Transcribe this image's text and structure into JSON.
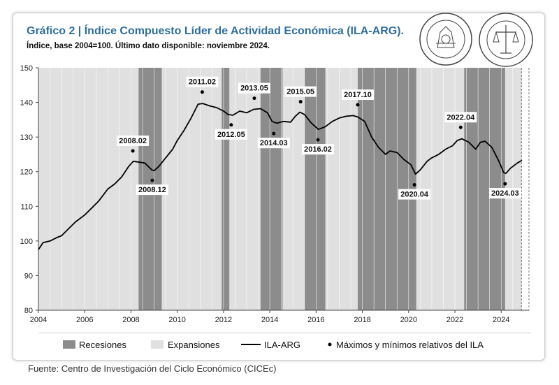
{
  "header": {
    "title": "Gráfico 2 | Índice Compuesto Líder de Actividad Económica (ILA-ARG).",
    "subtitle": "Índice, base 2004=100. Último dato disponible: noviembre 2024."
  },
  "logos": [
    {
      "name": "bolsa-comercio-santa-fe-seal",
      "text": "BOLSA DE COMERCIO DE SANTA FE"
    },
    {
      "name": "bolsa-comercio-rosario-seal",
      "text": "BOLSA DE COMERCIO DE ROSARIO"
    }
  ],
  "source": "Fuente: Centro de Investigación del Ciclo Económico (CICEc)",
  "colors": {
    "recession": "#8c8c8c",
    "expansion": "#e0e0e0",
    "line": "#000000",
    "title": "#2f6e9e"
  },
  "chart_data": {
    "type": "line",
    "title": "Índice Compuesto Líder de Actividad Económica (ILA-ARG)",
    "xlabel": "",
    "ylabel": "",
    "xlim": [
      2004.0,
      2025.2
    ],
    "ylim": [
      80,
      150
    ],
    "yticks": [
      80,
      90,
      100,
      110,
      120,
      130,
      140,
      150
    ],
    "xticks": [
      2004,
      2006,
      2008,
      2010,
      2012,
      2014,
      2016,
      2018,
      2020,
      2022,
      2024
    ],
    "grid": false,
    "legend": {
      "placement": "bottom",
      "entries": [
        "Recesiones",
        "Expansiones",
        "ILA-ARG",
        "Máximos y mínimos relativos del ILA"
      ]
    },
    "last_data": 2024.875,
    "recessions": [
      [
        2008.33,
        2009.33
      ],
      [
        2011.92,
        2012.25
      ],
      [
        2013.6,
        2014.55
      ],
      [
        2015.5,
        2016.4
      ],
      [
        2017.8,
        2020.33
      ],
      [
        2022.4,
        2024.17
      ]
    ],
    "series": [
      {
        "name": "ILA-ARG",
        "points": [
          [
            2004.0,
            97.5
          ],
          [
            2004.2,
            99.5
          ],
          [
            2004.5,
            100.0
          ],
          [
            2004.8,
            101.0
          ],
          [
            2005.0,
            101.5
          ],
          [
            2005.3,
            103.5
          ],
          [
            2005.6,
            105.5
          ],
          [
            2006.0,
            107.5
          ],
          [
            2006.3,
            109.5
          ],
          [
            2006.6,
            111.5
          ],
          [
            2007.0,
            115.0
          ],
          [
            2007.3,
            116.5
          ],
          [
            2007.6,
            118.5
          ],
          [
            2007.9,
            121.5
          ],
          [
            2008.1,
            123.0
          ],
          [
            2008.3,
            122.8
          ],
          [
            2008.6,
            122.5
          ],
          [
            2008.9,
            120.5
          ],
          [
            2009.0,
            120.3
          ],
          [
            2009.2,
            121.5
          ],
          [
            2009.5,
            124.0
          ],
          [
            2009.8,
            126.5
          ],
          [
            2010.0,
            129.0
          ],
          [
            2010.3,
            132.0
          ],
          [
            2010.6,
            135.5
          ],
          [
            2010.9,
            139.5
          ],
          [
            2011.1,
            139.7
          ],
          [
            2011.4,
            139.0
          ],
          [
            2011.7,
            138.5
          ],
          [
            2012.0,
            137.5
          ],
          [
            2012.2,
            136.5
          ],
          [
            2012.4,
            136.3
          ],
          [
            2012.7,
            137.5
          ],
          [
            2013.0,
            137.0
          ],
          [
            2013.3,
            138.0
          ],
          [
            2013.6,
            138.2
          ],
          [
            2013.9,
            137.0
          ],
          [
            2014.1,
            134.5
          ],
          [
            2014.3,
            134.0
          ],
          [
            2014.6,
            134.5
          ],
          [
            2014.9,
            134.3
          ],
          [
            2015.1,
            136.0
          ],
          [
            2015.3,
            137.2
          ],
          [
            2015.5,
            136.5
          ],
          [
            2015.8,
            134.0
          ],
          [
            2016.1,
            132.2
          ],
          [
            2016.4,
            133.0
          ],
          [
            2016.7,
            134.5
          ],
          [
            2017.0,
            135.5
          ],
          [
            2017.3,
            136.0
          ],
          [
            2017.6,
            136.2
          ],
          [
            2017.8,
            135.8
          ],
          [
            2018.1,
            134.5
          ],
          [
            2018.4,
            130.0
          ],
          [
            2018.7,
            127.0
          ],
          [
            2019.0,
            125.0
          ],
          [
            2019.2,
            126.0
          ],
          [
            2019.5,
            125.5
          ],
          [
            2019.8,
            123.5
          ],
          [
            2020.1,
            122.0
          ],
          [
            2020.3,
            119.3
          ],
          [
            2020.5,
            120.5
          ],
          [
            2020.8,
            123.0
          ],
          [
            2021.0,
            124.0
          ],
          [
            2021.3,
            125.0
          ],
          [
            2021.6,
            126.5
          ],
          [
            2021.9,
            127.5
          ],
          [
            2022.1,
            129.0
          ],
          [
            2022.3,
            129.5
          ],
          [
            2022.6,
            128.5
          ],
          [
            2022.9,
            126.5
          ],
          [
            2023.1,
            128.5
          ],
          [
            2023.3,
            128.8
          ],
          [
            2023.6,
            127.0
          ],
          [
            2023.9,
            123.0
          ],
          [
            2024.1,
            119.8
          ],
          [
            2024.2,
            119.5
          ],
          [
            2024.4,
            121.0
          ],
          [
            2024.7,
            122.5
          ],
          [
            2024.9,
            123.3
          ]
        ]
      }
    ],
    "annotations": [
      {
        "label": "2008.02",
        "x": 2008.08,
        "y": 126.0,
        "kind": "max"
      },
      {
        "label": "2008.12",
        "x": 2008.92,
        "y": 117.5,
        "kind": "min"
      },
      {
        "label": "2011.02",
        "x": 2011.08,
        "y": 143.0,
        "kind": "max"
      },
      {
        "label": "2012.05",
        "x": 2012.33,
        "y": 133.5,
        "kind": "min"
      },
      {
        "label": "2013.05",
        "x": 2013.33,
        "y": 141.2,
        "kind": "max"
      },
      {
        "label": "2014.03",
        "x": 2014.17,
        "y": 131.0,
        "kind": "min"
      },
      {
        "label": "2015.05",
        "x": 2015.33,
        "y": 140.2,
        "kind": "max"
      },
      {
        "label": "2016.02",
        "x": 2016.08,
        "y": 129.2,
        "kind": "min"
      },
      {
        "label": "2017.10",
        "x": 2017.8,
        "y": 139.3,
        "kind": "max"
      },
      {
        "label": "2020.04",
        "x": 2020.25,
        "y": 116.2,
        "kind": "min"
      },
      {
        "label": "2022.04",
        "x": 2022.25,
        "y": 132.8,
        "kind": "max"
      },
      {
        "label": "2024.03",
        "x": 2024.17,
        "y": 116.5,
        "kind": "min"
      }
    ]
  }
}
